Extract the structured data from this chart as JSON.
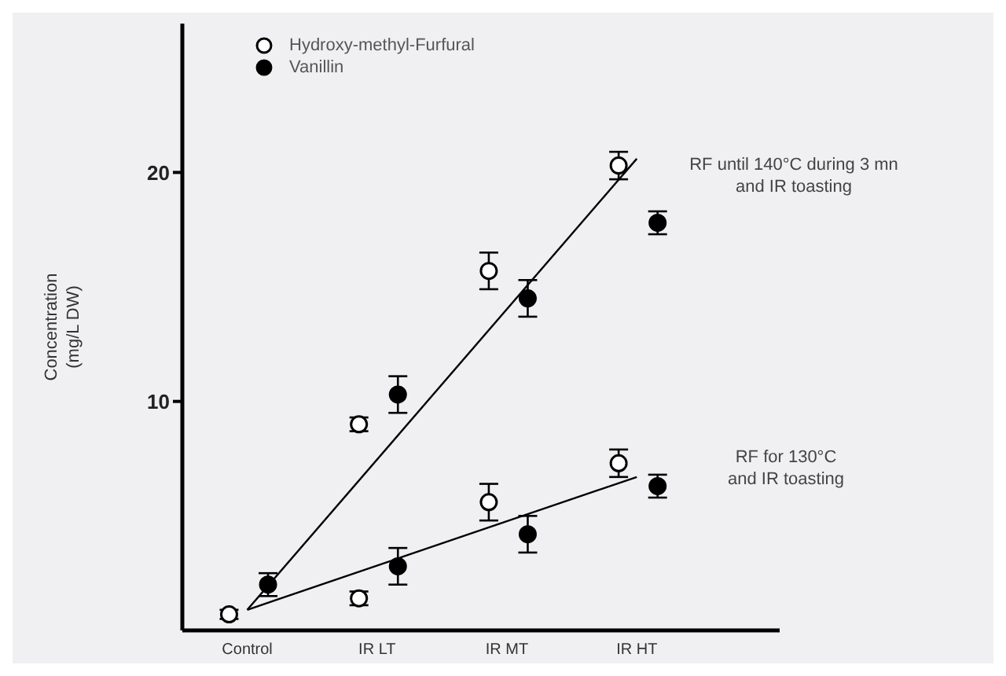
{
  "chart_data": {
    "type": "scatter",
    "ylabel": "Concentration\n(mg/L DW)",
    "categories": [
      "Control",
      "IR LT",
      "IR MT",
      "IR HT"
    ],
    "ylim": [
      0,
      26.5
    ],
    "yticks": [
      10,
      20
    ],
    "grid": false,
    "legend": "top left",
    "series": [
      {
        "name": "Hydroxy-methyl-Furfural",
        "marker": "circle",
        "color": "#ffffff",
        "x": [
          "Control",
          "IR LT",
          "IR LT",
          "IR MT",
          "IR MT",
          "IR HT",
          "IR HT"
        ],
        "values": [
          0.7,
          9.0,
          1.4,
          15.7,
          5.6,
          20.3,
          7.3
        ],
        "errors": [
          0.2,
          0.3,
          0.3,
          0.8,
          0.8,
          0.6,
          0.6
        ]
      },
      {
        "name": "Vanillin",
        "marker": "circle",
        "color": "#000000",
        "x": [
          "Control",
          "IR LT",
          "IR LT",
          "IR MT",
          "IR MT",
          "IR HT",
          "IR HT"
        ],
        "values": [
          2.0,
          10.3,
          2.8,
          14.5,
          4.2,
          17.8,
          6.3
        ],
        "errors": [
          0.5,
          0.8,
          0.8,
          0.8,
          0.8,
          0.5,
          0.5
        ]
      },
      {
        "type": "line",
        "color": "#000000",
        "x": [
          "Control",
          "IR HT"
        ],
        "values": [
          0.9,
          20.6
        ]
      },
      {
        "type": "line",
        "color": "#000000",
        "x": [
          "Control",
          "IR HT"
        ],
        "values": [
          0.9,
          6.7
        ]
      }
    ],
    "annotations": [
      "RF until 140°C during 3 mn\nand IR toasting",
      "RF for 130°C\nand IR toasting"
    ]
  }
}
